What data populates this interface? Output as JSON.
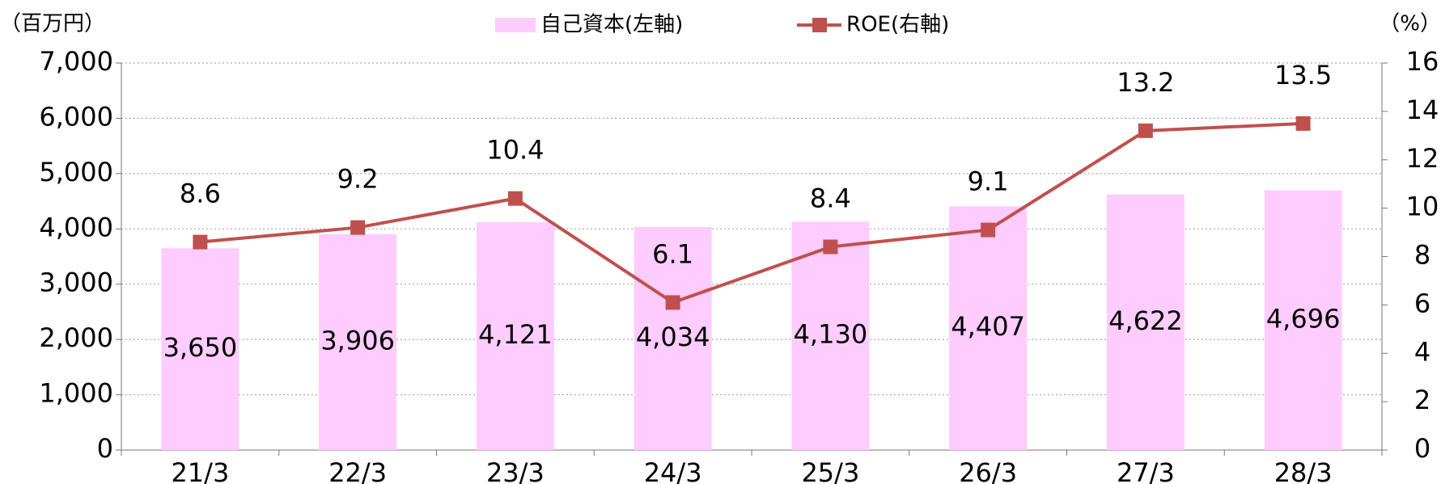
{
  "chart_data": {
    "type": "bar",
    "y_unit_label": "（百万円）",
    "y2_unit_label": "（%）",
    "categories": [
      "21/3",
      "22/3",
      "23/3",
      "24/3",
      "25/3",
      "26/3",
      "27/3",
      "28/3"
    ],
    "series": [
      {
        "name": "自己資本(左軸)",
        "type": "bar",
        "color": "#ffccff",
        "values": [
          3650,
          3906,
          4121,
          4034,
          4130,
          4407,
          4622,
          4696
        ],
        "value_labels": [
          "3,650",
          "3,906",
          "4,121",
          "4,034",
          "4,130",
          "4,407",
          "4,622",
          "4,696"
        ]
      },
      {
        "name": "ROE(右軸)",
        "type": "line",
        "axis": "y2",
        "color": "#c0504d",
        "values": [
          8.6,
          9.2,
          10.4,
          6.1,
          8.4,
          9.1,
          13.2,
          13.5
        ]
      }
    ],
    "ylim": [
      0,
      7000
    ],
    "yticks": [
      0,
      {
        "value": 1000,
        "label": "1,000"
      },
      {
        "value": 2000,
        "label": "2,000"
      },
      {
        "value": 3000,
        "label": "3,000"
      },
      {
        "value": 4000,
        "label": "4,000"
      },
      {
        "value": 5000,
        "label": "5,000"
      },
      {
        "value": 6000,
        "label": "6,000"
      },
      {
        "value": 7000,
        "label": "7,000"
      }
    ],
    "y2lim": [
      0,
      16
    ],
    "y2ticks": [
      0,
      2,
      4,
      6,
      8,
      10,
      12,
      14,
      16
    ],
    "grid": true,
    "legend": "top"
  }
}
